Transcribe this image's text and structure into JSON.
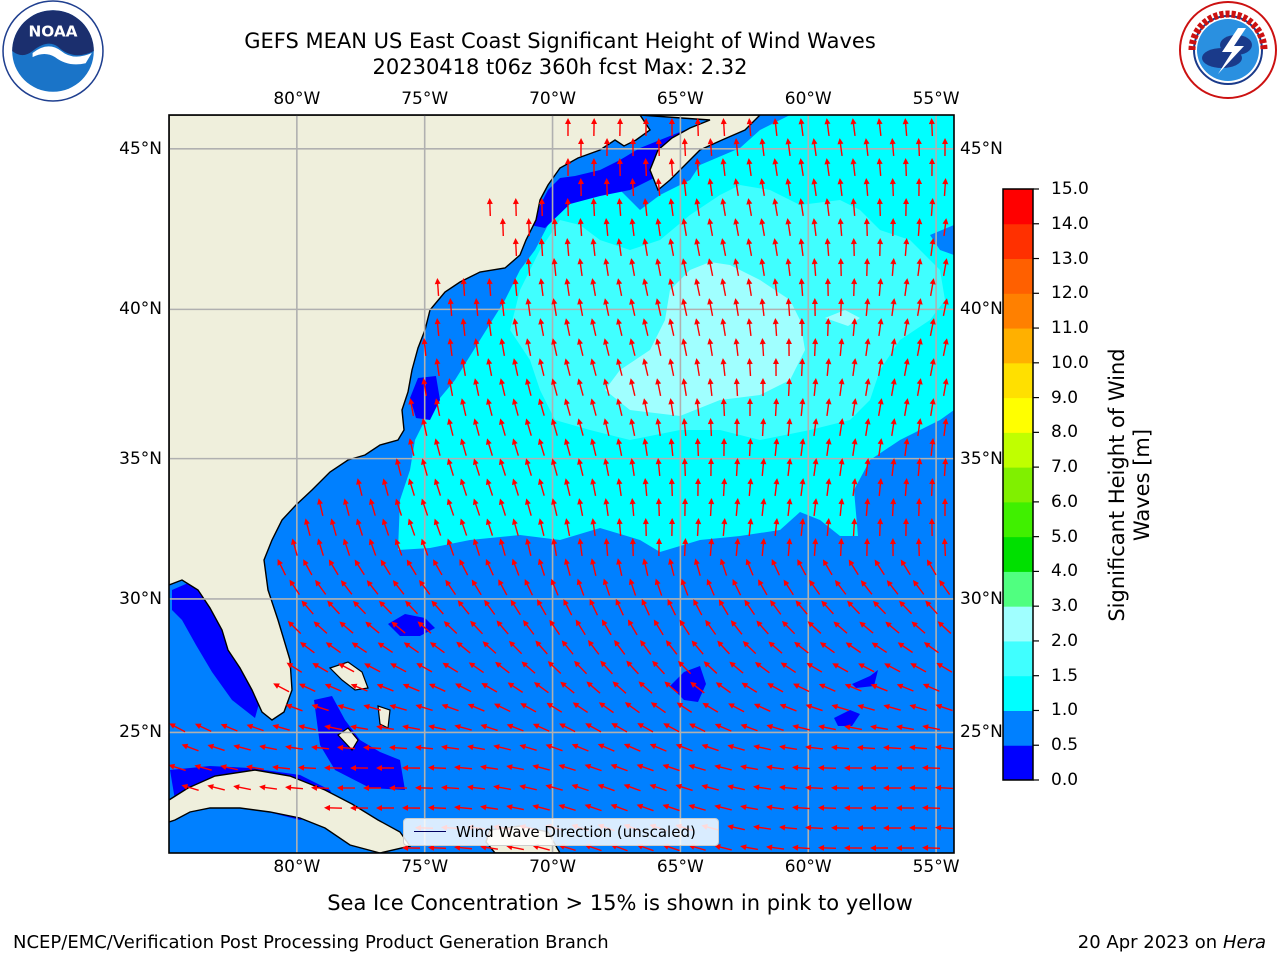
{
  "title_line1": "GEFS MEAN US East Coast Significant Height of Wind Waves",
  "title_line2": "20230418 t06z 360h fcst   Max: 2.32",
  "lon_labels": [
    "80°W",
    "75°W",
    "70°W",
    "65°W",
    "60°W",
    "55°W"
  ],
  "lat_labels": [
    "45°N",
    "40°N",
    "35°N",
    "30°N",
    "25°N"
  ],
  "legend_label": "Wind Wave Direction (unscaled)",
  "subtitle": "Sea Ice Concentration > 15% is shown in pink to yellow",
  "footer_left": "NCEP/EMC/Verification Post Processing Product Generation Branch",
  "footer_date": "20 Apr 2023 on ",
  "footer_host": "Hera",
  "colorbar": {
    "label": "Significant Height of Wind Waves [m]",
    "ticks": [
      "0.0",
      "0.5",
      "1.0",
      "1.5",
      "2.0",
      "3.0",
      "4.0",
      "5.0",
      "6.0",
      "7.0",
      "8.0",
      "9.0",
      "10.0",
      "11.0",
      "12.0",
      "13.0",
      "14.0",
      "15.0"
    ],
    "colors": [
      "#0000ff",
      "#0080ff",
      "#00ffff",
      "#40ffff",
      "#a0ffff",
      "#50ff80",
      "#00e000",
      "#40f000",
      "#80f000",
      "#c0ff00",
      "#ffff00",
      "#ffe000",
      "#ffb000",
      "#ff8000",
      "#ff6000",
      "#ff3000",
      "#ff0000"
    ]
  },
  "logos": {
    "left": "noaa-logo",
    "right": "nws-logo"
  },
  "colors": {
    "land": "#efefdc",
    "ocean_low": "#0080ff",
    "ocean_high": "#00ffff",
    "ocean_peak": "#a0ffff",
    "arrow": "#ff0000",
    "grid": "#b0b0b0"
  },
  "map_data": {
    "lon_range": [
      -85,
      -54.3
    ],
    "lat_range": [
      20.3,
      46
    ],
    "grid_lons": [
      -80,
      -75,
      -70,
      -65,
      -60,
      -55
    ],
    "grid_lats": [
      45,
      40,
      35,
      30,
      25
    ]
  }
}
